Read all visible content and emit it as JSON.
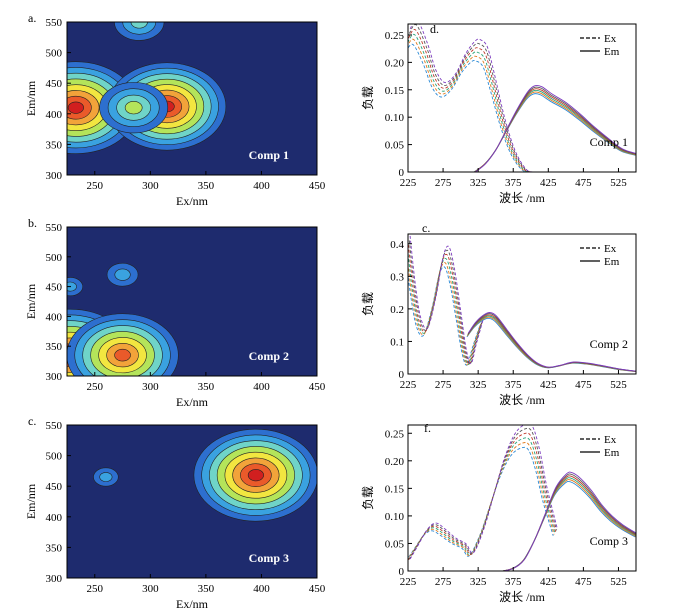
{
  "chart_data": [
    {
      "id": "a",
      "type": "contour",
      "panel_label": "a.",
      "title": "",
      "xlabel": "Ex/nm",
      "ylabel": "Em/nm",
      "xlim": [
        225,
        450
      ],
      "ylim": [
        300,
        550
      ],
      "xticks": [
        250,
        300,
        350,
        400,
        450
      ],
      "yticks": [
        300,
        350,
        400,
        450,
        500,
        550
      ],
      "annotation": "Comp 1",
      "peaks": [
        {
          "ex": 233,
          "em": 410,
          "intensity": 1.0
        },
        {
          "ex": 315,
          "em": 412,
          "intensity": 0.95
        },
        {
          "ex": 285,
          "em": 410,
          "intensity": 0.55
        },
        {
          "ex": 290,
          "em": 550,
          "intensity": 0.4
        }
      ]
    },
    {
      "id": "b",
      "type": "contour",
      "panel_label": "b.",
      "title": "",
      "xlabel": "Ex/nm",
      "ylabel": "Em/nm",
      "xlim": [
        225,
        450
      ],
      "ylim": [
        300,
        550
      ],
      "xticks": [
        250,
        300,
        350,
        400,
        450
      ],
      "yticks": [
        300,
        350,
        400,
        450,
        500,
        550
      ],
      "annotation": "Comp 2",
      "peaks": [
        {
          "ex": 228,
          "em": 335,
          "intensity": 1.0
        },
        {
          "ex": 275,
          "em": 335,
          "intensity": 0.9
        },
        {
          "ex": 275,
          "em": 470,
          "intensity": 0.25
        },
        {
          "ex": 228,
          "em": 450,
          "intensity": 0.2
        }
      ]
    },
    {
      "id": "c",
      "type": "contour",
      "panel_label": "c.",
      "title": "",
      "xlabel": "Ex/nm",
      "ylabel": "Em/nm",
      "xlim": [
        225,
        450
      ],
      "ylim": [
        300,
        550
      ],
      "xticks": [
        250,
        300,
        350,
        400,
        450
      ],
      "yticks": [
        300,
        350,
        400,
        450,
        500,
        550
      ],
      "annotation": "Comp 3",
      "peaks": [
        {
          "ex": 395,
          "em": 468,
          "intensity": 1.0
        },
        {
          "ex": 260,
          "em": 465,
          "intensity": 0.2
        }
      ]
    },
    {
      "id": "d",
      "type": "line",
      "panel_label": "d.",
      "xlabel": "波长 /nm",
      "ylabel": "负载",
      "xlim": [
        225,
        550
      ],
      "ylim": [
        0,
        0.27
      ],
      "xticks": [
        225,
        275,
        325,
        375,
        425,
        475,
        525
      ],
      "yticks": [
        0,
        0.05,
        0.1,
        0.15,
        0.2,
        0.25
      ],
      "ytick_labels": [
        "0",
        "0.05",
        "0.10",
        "0.15",
        "0.20",
        "0.25"
      ],
      "legend": [
        {
          "label": "Ex",
          "style": "dashed"
        },
        {
          "label": "Em",
          "style": "solid"
        }
      ],
      "annotation": "Comp 1",
      "series": [
        {
          "name": "Ex",
          "x": [
            225,
            235,
            250,
            262,
            275,
            290,
            305,
            318,
            325,
            335,
            345,
            360,
            375,
            390,
            400
          ],
          "y": [
            0.24,
            0.255,
            0.215,
            0.17,
            0.15,
            0.165,
            0.2,
            0.22,
            0.222,
            0.21,
            0.165,
            0.09,
            0.035,
            0.005,
            0.0
          ]
        },
        {
          "name": "Em",
          "x": [
            320,
            335,
            350,
            365,
            380,
            395,
            405,
            415,
            430,
            450,
            470,
            490,
            510,
            530,
            550
          ],
          "y": [
            0.0,
            0.015,
            0.04,
            0.075,
            0.11,
            0.14,
            0.15,
            0.148,
            0.135,
            0.12,
            0.1,
            0.078,
            0.058,
            0.04,
            0.032
          ]
        }
      ]
    },
    {
      "id": "e",
      "type": "line",
      "panel_label": "c.",
      "xlabel": "波长 /nm",
      "ylabel": "负载",
      "xlim": [
        225,
        550
      ],
      "ylim": [
        0,
        0.43
      ],
      "xticks": [
        225,
        275,
        325,
        375,
        425,
        475,
        525
      ],
      "yticks": [
        0,
        0.1,
        0.2,
        0.3,
        0.4
      ],
      "ytick_labels": [
        "0",
        "0.1",
        "0.2",
        "0.3",
        "0.4"
      ],
      "legend": [
        {
          "label": "Ex",
          "style": "dashed"
        },
        {
          "label": "Em",
          "style": "solid"
        }
      ],
      "annotation": "Comp 2",
      "series": [
        {
          "name": "Ex",
          "x": [
            225,
            232,
            240,
            250,
            262,
            272,
            280,
            288,
            297,
            305,
            312,
            320,
            330
          ],
          "y": [
            0.39,
            0.26,
            0.16,
            0.13,
            0.22,
            0.33,
            0.36,
            0.3,
            0.18,
            0.07,
            0.03,
            0.09,
            0.16
          ]
        },
        {
          "name": "Em",
          "x": [
            310,
            320,
            330,
            340,
            350,
            365,
            380,
            395,
            410,
            425,
            440,
            460,
            480,
            500,
            525,
            550
          ],
          "y": [
            0.12,
            0.15,
            0.17,
            0.18,
            0.17,
            0.13,
            0.09,
            0.055,
            0.03,
            0.02,
            0.025,
            0.035,
            0.032,
            0.025,
            0.015,
            0.008
          ]
        }
      ]
    },
    {
      "id": "f",
      "type": "line",
      "panel_label": "f.",
      "xlabel": "波长 /nm",
      "ylabel": "负载",
      "xlim": [
        225,
        550
      ],
      "ylim": [
        0,
        0.265
      ],
      "xticks": [
        225,
        275,
        325,
        375,
        425,
        475,
        525
      ],
      "yticks": [
        0,
        0.05,
        0.1,
        0.15,
        0.2,
        0.25
      ],
      "ytick_labels": [
        "0",
        "0.05",
        "0.10",
        "0.15",
        "0.20",
        "0.25"
      ],
      "legend": [
        {
          "label": "Ex",
          "style": "dashed"
        },
        {
          "label": "Em",
          "style": "solid"
        }
      ],
      "annotation": "Comp 3",
      "series": [
        {
          "name": "Ex",
          "x": [
            225,
            235,
            250,
            262,
            275,
            290,
            305,
            315,
            330,
            345,
            360,
            375,
            390,
            400,
            410,
            420,
            435
          ],
          "y": [
            0.02,
            0.04,
            0.07,
            0.08,
            0.07,
            0.055,
            0.045,
            0.03,
            0.07,
            0.13,
            0.19,
            0.23,
            0.245,
            0.24,
            0.2,
            0.14,
            0.07
          ]
        },
        {
          "name": "Em",
          "x": [
            360,
            375,
            390,
            405,
            420,
            435,
            450,
            458,
            470,
            485,
            500,
            515,
            530,
            550
          ],
          "y": [
            0.0,
            0.005,
            0.02,
            0.055,
            0.1,
            0.145,
            0.168,
            0.17,
            0.16,
            0.14,
            0.115,
            0.095,
            0.08,
            0.065
          ]
        }
      ]
    }
  ]
}
